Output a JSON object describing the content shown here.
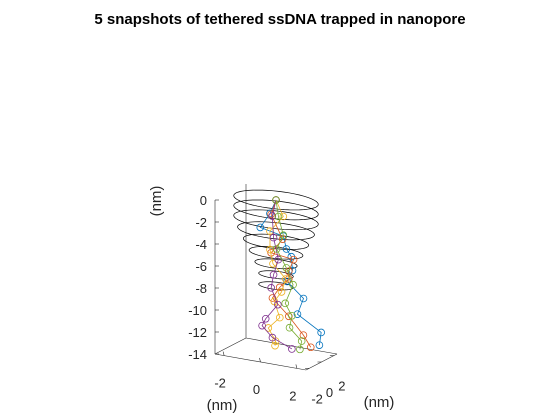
{
  "chart_data": {
    "type": "scatter",
    "title": "5 snapshots of tethered ssDNA trapped in nanopore",
    "xlabel": "(nm)",
    "ylabel": "(nm)",
    "zlabel": "(nm)",
    "xlim": [
      -2.5,
      2.5
    ],
    "ylim": [
      -2.5,
      2.5
    ],
    "zlim": [
      -14,
      0
    ],
    "xticks": [
      -2,
      0,
      2
    ],
    "yticks": [
      -2,
      0,
      2
    ],
    "zticks": [
      0,
      -2,
      -4,
      -6,
      -8,
      -10,
      -12,
      -14
    ],
    "pore": {
      "rim_z": [
        0,
        -0.9,
        -1.8,
        -2.8,
        -3.8,
        -4.8,
        -5.8,
        -6.8,
        -7.8
      ],
      "rim_radius": [
        2.2,
        2.2,
        2.2,
        2.0,
        1.7,
        1.4,
        1.1,
        0.9,
        0.9
      ]
    },
    "series": [
      {
        "color": "#0072BD",
        "points": [
          [
            0,
            0,
            0
          ],
          [
            -0.4,
            0.2,
            -1.4
          ],
          [
            -1.0,
            0.4,
            -2.9
          ],
          [
            0.2,
            0.6,
            -3.4
          ],
          [
            0.3,
            0.8,
            -4.6
          ],
          [
            0.5,
            1.0,
            -5.3
          ],
          [
            0.6,
            0.9,
            -6.5
          ],
          [
            0.2,
            1.2,
            -7.7
          ],
          [
            1.0,
            1.5,
            -9.1
          ],
          [
            0.6,
            1.7,
            -10.7
          ],
          [
            1.8,
            2.0,
            -12.1
          ],
          [
            1.6,
            2.3,
            -13.4
          ]
        ]
      },
      {
        "color": "#D95319",
        "points": [
          [
            0,
            0,
            0
          ],
          [
            -0.2,
            -0.2,
            -1.3
          ],
          [
            0.5,
            -0.4,
            -3.3
          ],
          [
            -0.2,
            -0.2,
            -4.8
          ],
          [
            1.0,
            -0.1,
            -5.1
          ],
          [
            0.6,
            0.3,
            -6.4
          ],
          [
            0.5,
            0.6,
            -7.2
          ],
          [
            0.1,
            0.3,
            -8.0
          ],
          [
            -0.4,
            0.6,
            -9.2
          ],
          [
            0.5,
            0.6,
            -10.6
          ],
          [
            1.2,
            0.9,
            -12.2
          ],
          [
            1.5,
            1.2,
            -13.3
          ]
        ]
      },
      {
        "color": "#EDB120",
        "points": [
          [
            0,
            0,
            0
          ],
          [
            0.3,
            0.3,
            -1.5
          ],
          [
            -0.4,
            0.2,
            -3.0
          ],
          [
            -0.5,
            0.5,
            -4.8
          ],
          [
            -0.3,
            0.4,
            -6.0
          ],
          [
            0.3,
            0.7,
            -7.3
          ],
          [
            0.1,
            0.6,
            -8.5
          ],
          [
            -0.4,
            0.9,
            -9.6
          ],
          [
            -0.2,
            1.2,
            -11.1
          ],
          [
            -0.9,
            1.4,
            -12.3
          ],
          [
            -0.6,
            1.7,
            -13.5
          ],
          [
            -0.7,
            1.9,
            -14.0
          ]
        ]
      },
      {
        "color": "#7E2F8E",
        "points": [
          [
            0,
            0,
            0
          ],
          [
            -0.1,
            -0.3,
            -1.4
          ],
          [
            0.0,
            -0.4,
            -3.3
          ],
          [
            0.2,
            -0.2,
            -5.3
          ],
          [
            -0.1,
            -0.1,
            -6.8
          ],
          [
            -0.3,
            0.1,
            -8.1
          ],
          [
            0.0,
            0.3,
            -9.6
          ],
          [
            -0.6,
            0.1,
            -11.0
          ],
          [
            -0.9,
            0.4,
            -11.8
          ],
          [
            -0.4,
            0.6,
            -12.8
          ],
          [
            0.6,
            0.8,
            -13.6
          ]
        ]
      },
      {
        "color": "#77AC30",
        "points": [
          [
            0,
            0,
            0
          ],
          [
            0.1,
            0.1,
            -1.5
          ],
          [
            0.3,
            0.3,
            -3.2
          ],
          [
            -0.1,
            0.4,
            -4.6
          ],
          [
            0.4,
            0.5,
            -6.2
          ],
          [
            0.7,
            0.7,
            -7.7
          ],
          [
            0.2,
            0.9,
            -9.6
          ],
          [
            0.5,
            1.1,
            -10.7
          ],
          [
            0.3,
            1.3,
            -11.9
          ],
          [
            0.9,
            1.5,
            -13.0
          ],
          [
            0.7,
            1.8,
            -13.9
          ]
        ]
      }
    ]
  }
}
